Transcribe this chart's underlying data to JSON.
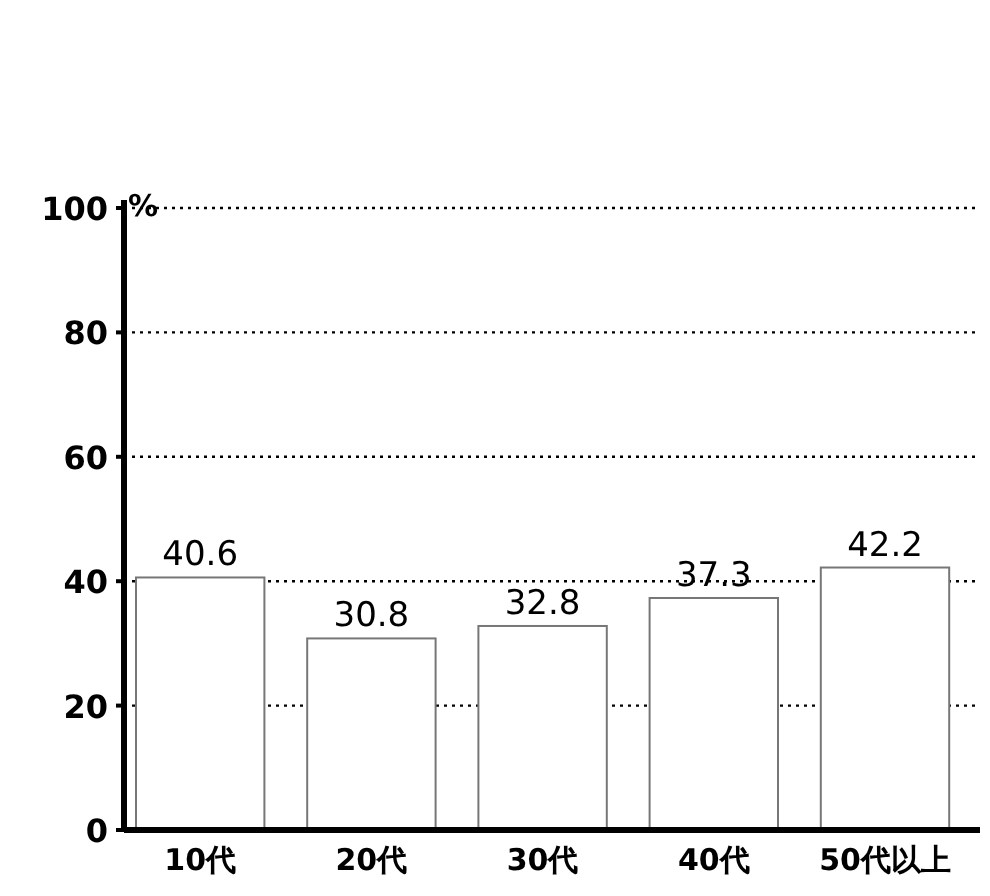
{
  "chart_data": {
    "type": "bar",
    "ylabel": "%",
    "categories": [
      "10代",
      "20代",
      "30代",
      "40代",
      "50代以上"
    ],
    "values": [
      40.6,
      30.8,
      32.8,
      37.3,
      42.2
    ],
    "color": "#ffffff",
    "ylim": [
      0,
      100
    ],
    "yticks": [
      0,
      20,
      40,
      60,
      80,
      100
    ],
    "grid": "y",
    "data_labels": true
  }
}
